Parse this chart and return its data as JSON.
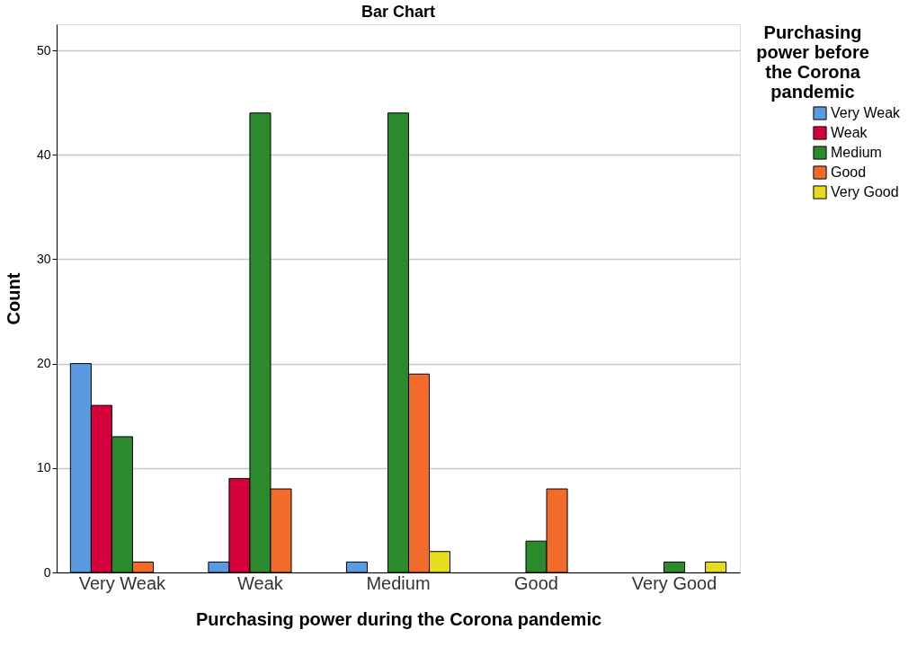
{
  "chart_data": {
    "type": "bar",
    "title": "Bar Chart",
    "xlabel": "Purchasing power during the Corona pandemic",
    "ylabel": "Count",
    "legend_title": "Purchasing power before the Corona pandemic",
    "categories": [
      "Very Weak",
      "Weak",
      "Medium",
      "Good",
      "Very Good"
    ],
    "series": [
      {
        "name": "Very Weak",
        "color": "#5a9ae0",
        "values": [
          20,
          1,
          1,
          null,
          null
        ]
      },
      {
        "name": "Weak",
        "color": "#d3003a",
        "values": [
          16,
          9,
          null,
          null,
          null
        ]
      },
      {
        "name": "Medium",
        "color": "#2b8a2b",
        "values": [
          13,
          44,
          44,
          3,
          1
        ]
      },
      {
        "name": "Good",
        "color": "#f26b2a",
        "values": [
          1,
          8,
          19,
          8,
          null
        ]
      },
      {
        "name": "Very Good",
        "color": "#e6dc1e",
        "values": [
          null,
          null,
          2,
          null,
          1
        ]
      }
    ],
    "ylim": [
      0,
      52.5
    ],
    "yticks": [
      0,
      10,
      20,
      30,
      40,
      50
    ],
    "grid": "y",
    "legend": "right"
  }
}
